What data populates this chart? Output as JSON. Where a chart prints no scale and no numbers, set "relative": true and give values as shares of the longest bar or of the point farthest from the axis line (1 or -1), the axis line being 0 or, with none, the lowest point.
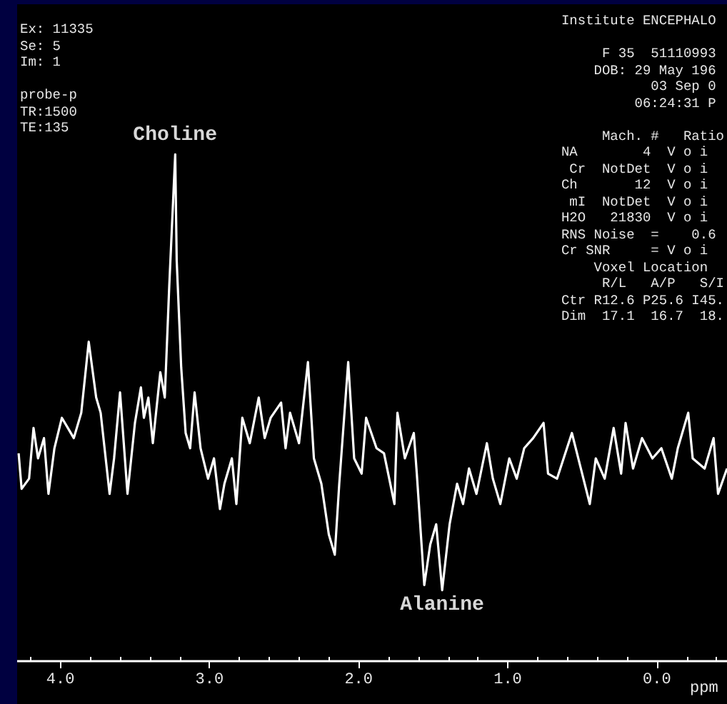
{
  "chart_data": {
    "type": "line",
    "relative": true,
    "xlabel": "ppm",
    "color": "#ffffff",
    "marker": "none",
    "line_style": "solid",
    "grid": false,
    "tick_labels": "x",
    "xlim": [
      4.29,
      -0.47
    ],
    "xticks": [
      {
        "value": 4.2,
        "label": null
      },
      {
        "value": 4,
        "label": "4.0"
      },
      {
        "value": 3.8,
        "label": null
      },
      {
        "value": 3.6,
        "label": null
      },
      {
        "value": 3.4,
        "label": null
      },
      {
        "value": 3.2,
        "label": null
      },
      {
        "value": 3,
        "label": "3.0"
      },
      {
        "value": 2.8,
        "label": null
      },
      {
        "value": 2.6,
        "label": null
      },
      {
        "value": 2.4,
        "label": null
      },
      {
        "value": 2.2,
        "label": null
      },
      {
        "value": 2,
        "label": "2.0"
      },
      {
        "value": 1.8,
        "label": null
      },
      {
        "value": 1.6,
        "label": null
      },
      {
        "value": 1.4,
        "label": null
      },
      {
        "value": 1.2,
        "label": null
      },
      {
        "value": 1,
        "label": "1.0"
      },
      {
        "value": 0.8,
        "label": null
      },
      {
        "value": 0.6,
        "label": null
      },
      {
        "value": 0.4,
        "label": null
      },
      {
        "value": 0.2,
        "label": null
      },
      {
        "value": 0,
        "label": "0.0"
      },
      {
        "value": -0.2,
        "label": null
      },
      {
        "value": -0.4,
        "label": null
      }
    ],
    "x": [
      4.28,
      4.26,
      4.21,
      4.18,
      4.15,
      4.11,
      4.08,
      4.04,
      3.99,
      3.95,
      3.91,
      3.86,
      3.81,
      3.76,
      3.73,
      3.67,
      3.64,
      3.6,
      3.55,
      3.5,
      3.46,
      3.44,
      3.41,
      3.38,
      3.33,
      3.3,
      3.27,
      3.23,
      3.22,
      3.19,
      3.16,
      3.13,
      3.1,
      3.06,
      3.01,
      2.97,
      2.93,
      2.9,
      2.85,
      2.82,
      2.78,
      2.73,
      2.67,
      2.63,
      2.59,
      2.52,
      2.49,
      2.46,
      2.4,
      2.34,
      2.3,
      2.25,
      2.2,
      2.16,
      2.13,
      2.07,
      2.03,
      1.98,
      1.95,
      1.88,
      1.83,
      1.76,
      1.74,
      1.69,
      1.63,
      1.61,
      1.56,
      1.52,
      1.48,
      1.44,
      1.39,
      1.34,
      1.3,
      1.26,
      1.21,
      1.14,
      1.1,
      1.05,
      0.99,
      0.94,
      0.89,
      0.83,
      0.76,
      0.73,
      0.67,
      0.57,
      0.51,
      0.45,
      0.41,
      0.35,
      0.29,
      0.24,
      0.21,
      0.16,
      0.1,
      0.03,
      -0.03,
      -0.1,
      -0.14,
      -0.21,
      -0.24,
      -0.32,
      -0.38,
      -0.41,
      -0.47
    ],
    "values": [
      0.41,
      0.34,
      0.36,
      0.46,
      0.4,
      0.44,
      0.33,
      0.42,
      0.48,
      0.46,
      0.44,
      0.49,
      0.63,
      0.52,
      0.49,
      0.33,
      0.4,
      0.53,
      0.33,
      0.47,
      0.54,
      0.48,
      0.52,
      0.43,
      0.57,
      0.52,
      0.74,
      1,
      0.79,
      0.58,
      0.45,
      0.42,
      0.53,
      0.42,
      0.36,
      0.4,
      0.3,
      0.35,
      0.4,
      0.31,
      0.48,
      0.43,
      0.52,
      0.44,
      0.48,
      0.51,
      0.42,
      0.49,
      0.43,
      0.59,
      0.4,
      0.35,
      0.25,
      0.21,
      0.35,
      0.59,
      0.4,
      0.37,
      0.48,
      0.42,
      0.41,
      0.31,
      0.49,
      0.4,
      0.45,
      0.37,
      0.15,
      0.23,
      0.27,
      0.14,
      0.27,
      0.35,
      0.31,
      0.38,
      0.33,
      0.43,
      0.36,
      0.31,
      0.4,
      0.36,
      0.42,
      0.44,
      0.47,
      0.37,
      0.36,
      0.45,
      0.38,
      0.31,
      0.4,
      0.36,
      0.46,
      0.37,
      0.47,
      0.38,
      0.44,
      0.4,
      0.42,
      0.36,
      0.42,
      0.49,
      0.4,
      0.38,
      0.44,
      0.33,
      0.38
    ],
    "annotations": [
      "Ex: 11335\nSe: 5\nIm: 1\n\nprobe-p\nTR:1500\nTE:135",
      "Institute ENCEPHALO\n\n     F 35  51110993\n    DOB: 29 May 196\n           03 Sep 0\n         06:24:31 P\n\n     Mach. #   Ratio\nNA        4  V o i\n Cr  NotDet  V o i\nCh       12  V o i\n mI  NotDet  V o i\nH2O   21830  V o i\nRNS Noise  =    0.6\nCr SNR     = V o i\n    Voxel Location\n     R/L   A/P   S/I\nCtr R12.6 P25.6 I45.\nDim  17.1  16.7  18.",
      {
        "text": "Choline",
        "x": 3.23,
        "y": 1
      },
      {
        "text": "Alanine",
        "x": 1.44,
        "y": 0.14
      }
    ]
  }
}
